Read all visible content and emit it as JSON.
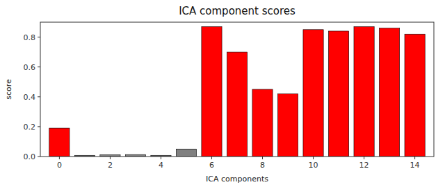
{
  "chart_data": {
    "type": "bar",
    "title": "ICA component scores",
    "x_label": "ICA components",
    "y_label": "score",
    "x": [
      0,
      1,
      2,
      3,
      4,
      5,
      6,
      7,
      8,
      9,
      10,
      11,
      12,
      13,
      14
    ],
    "values": [
      0.19,
      0.008,
      0.012,
      0.013,
      0.008,
      0.05,
      0.87,
      0.7,
      0.45,
      0.42,
      0.85,
      0.84,
      0.87,
      0.86,
      0.82
    ],
    "colors": [
      "red",
      "gray",
      "gray",
      "gray",
      "gray",
      "gray",
      "red",
      "red",
      "red",
      "red",
      "red",
      "red",
      "red",
      "red",
      "red"
    ],
    "xlim": [
      -0.75,
      14.75
    ],
    "xticks": [
      0,
      2,
      4,
      6,
      8,
      10,
      12,
      14
    ],
    "ylim": [
      0,
      0.9
    ],
    "yticks": [
      {
        "value": 0,
        "label": "0.0"
      },
      0.2,
      0.4,
      0.6,
      0.8
    ],
    "grid": false
  }
}
